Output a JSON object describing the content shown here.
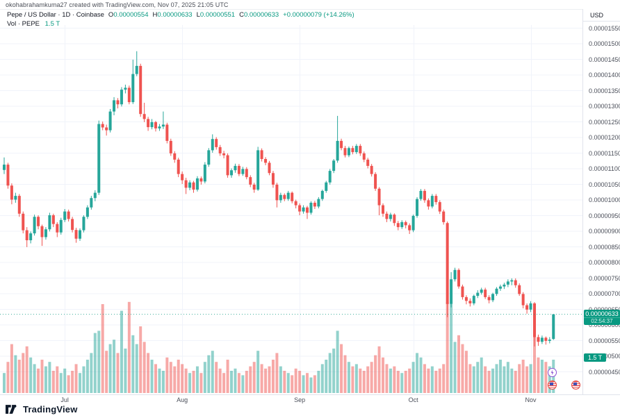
{
  "attribution": "okohabrahamkuma27 created with TradingView.com, Nov 07, 2025 21:05 UTC",
  "legend": {
    "title": "Pepe / US Dollar · 1D · Coinbase",
    "ohlc": [
      {
        "label": "O",
        "value": "0.00000554"
      },
      {
        "label": "H",
        "value": "0.00000633"
      },
      {
        "label": "L",
        "value": "0.00000551"
      },
      {
        "label": "C",
        "value": "0.00000633"
      }
    ],
    "change": "+0.00000079 (+14.26%)",
    "volume_label": "Vol · PEPE",
    "volume_value": "1.5 T"
  },
  "price_axis": {
    "currency": "USD",
    "current_price": "0.00000633",
    "countdown": "02:54:37",
    "volume_badge": "1.5 T"
  },
  "branding": {
    "logo_text": "TradingView"
  },
  "events": [
    {
      "icon": "lightning-event-icon",
      "type": "crypto-event"
    },
    {
      "icon": "us-flag-event-icon",
      "type": "economic-event"
    },
    {
      "icon": "us-flag-event-icon",
      "type": "economic-event"
    }
  ],
  "colors": {
    "up": "#26a69a",
    "down": "#ef5350",
    "up_volume": "rgba(38,166,154,0.5)",
    "down_volume": "rgba(239,83,80,0.5)",
    "accent": "#089981",
    "grid": "#f0f3fa",
    "axis_text": "#4a4e59"
  },
  "chart_data": {
    "type": "candlestick+volume",
    "title": "Pepe / US Dollar, 1D, Coinbase",
    "price_unit": "values are USD x 1e-8 (e.g. 633 = 0.00000633)",
    "volume_unit": "T (trillions of PEPE)",
    "ylim": [
      450,
      1550
    ],
    "y_tick_step": 50,
    "y_ticks": [
      450,
      500,
      550,
      600,
      650,
      700,
      750,
      800,
      850,
      900,
      950,
      1000,
      1050,
      1100,
      1150,
      1200,
      1250,
      1300,
      1350,
      1400,
      1450,
      1500,
      1550
    ],
    "x_ticks": [
      {
        "label": "Jul",
        "index": 16
      },
      {
        "label": "Aug",
        "index": 47
      },
      {
        "label": "Sep",
        "index": 78
      },
      {
        "label": "Oct",
        "index": 108
      },
      {
        "label": "Nov",
        "index": 139
      }
    ],
    "price_line_value": 633,
    "ohlc_last": {
      "open": 554,
      "high": 633,
      "low": 551,
      "close": 633
    },
    "candles_format": [
      "open",
      "high",
      "low",
      "close",
      "volume"
    ],
    "candles": [
      [
        1095,
        1135,
        1082,
        1112,
        0.9
      ],
      [
        1112,
        1118,
        1035,
        1045,
        1.4
      ],
      [
        1045,
        1052,
        985,
        1000,
        2.2
      ],
      [
        1000,
        1022,
        990,
        1012,
        1.7
      ],
      [
        1012,
        1018,
        945,
        955,
        1.5
      ],
      [
        955,
        962,
        892,
        902,
        1.8
      ],
      [
        902,
        912,
        848,
        870,
        2.1
      ],
      [
        870,
        898,
        860,
        892,
        1.6
      ],
      [
        892,
        952,
        885,
        945,
        1.3
      ],
      [
        945,
        950,
        905,
        915,
        1.1
      ],
      [
        915,
        920,
        852,
        880,
        1.5
      ],
      [
        880,
        912,
        872,
        905,
        1.2
      ],
      [
        905,
        958,
        898,
        950,
        1.4
      ],
      [
        950,
        955,
        912,
        922,
        1.0
      ],
      [
        922,
        928,
        880,
        895,
        1.2
      ],
      [
        895,
        942,
        888,
        935,
        0.9
      ],
      [
        935,
        970,
        928,
        962,
        1.1
      ],
      [
        962,
        968,
        930,
        938,
        0.8
      ],
      [
        938,
        945,
        895,
        903,
        1.0
      ],
      [
        903,
        910,
        862,
        875,
        1.3
      ],
      [
        875,
        908,
        868,
        902,
        0.9
      ],
      [
        902,
        950,
        895,
        945,
        1.2
      ],
      [
        945,
        982,
        938,
        975,
        1.5
      ],
      [
        975,
        1012,
        968,
        1005,
        1.8
      ],
      [
        1005,
        1030,
        995,
        1022,
        2.7
      ],
      [
        1022,
        1253,
        1015,
        1242,
        2.8
      ],
      [
        1242,
        1250,
        1222,
        1231,
        4.0
      ],
      [
        1231,
        1240,
        1205,
        1222,
        1.9
      ],
      [
        1222,
        1290,
        1215,
        1282,
        2.2
      ],
      [
        1282,
        1328,
        1270,
        1318,
        2.4
      ],
      [
        1318,
        1325,
        1292,
        1305,
        1.8
      ],
      [
        1305,
        1360,
        1298,
        1352,
        3.7
      ],
      [
        1352,
        1368,
        1340,
        1358,
        2.0
      ],
      [
        1358,
        1365,
        1305,
        1312,
        4.1
      ],
      [
        1312,
        1448,
        1306,
        1402,
        2.6
      ],
      [
        1402,
        1475,
        1395,
        1428,
        2.2
      ],
      [
        1428,
        1435,
        1265,
        1274,
        3.0
      ],
      [
        1274,
        1310,
        1248,
        1258,
        2.3
      ],
      [
        1258,
        1265,
        1220,
        1232,
        1.8
      ],
      [
        1232,
        1258,
        1225,
        1248,
        1.5
      ],
      [
        1248,
        1252,
        1218,
        1228,
        1.3
      ],
      [
        1228,
        1242,
        1220,
        1234,
        1.1
      ],
      [
        1234,
        1282,
        1226,
        1240,
        1.0
      ],
      [
        1240,
        1246,
        1180,
        1188,
        1.6
      ],
      [
        1188,
        1195,
        1140,
        1148,
        1.4
      ],
      [
        1148,
        1155,
        1118,
        1128,
        1.2
      ],
      [
        1128,
        1134,
        1072,
        1082,
        1.5
      ],
      [
        1082,
        1090,
        1050,
        1062,
        1.3
      ],
      [
        1062,
        1070,
        1018,
        1038,
        1.1
      ],
      [
        1038,
        1062,
        1030,
        1055,
        0.9
      ],
      [
        1055,
        1060,
        1022,
        1032,
        1.0
      ],
      [
        1032,
        1075,
        1026,
        1068,
        1.2
      ],
      [
        1068,
        1074,
        1048,
        1058,
        0.9
      ],
      [
        1058,
        1120,
        1052,
        1112,
        1.4
      ],
      [
        1112,
        1165,
        1105,
        1158,
        1.7
      ],
      [
        1158,
        1209,
        1150,
        1194,
        1.9
      ],
      [
        1194,
        1200,
        1160,
        1168,
        1.4
      ],
      [
        1168,
        1175,
        1140,
        1148,
        1.1
      ],
      [
        1148,
        1156,
        1132,
        1142,
        0.9
      ],
      [
        1142,
        1148,
        1070,
        1078,
        1.5
      ],
      [
        1078,
        1100,
        1070,
        1094,
        1.0
      ],
      [
        1094,
        1115,
        1086,
        1108,
        1.1
      ],
      [
        1108,
        1114,
        1075,
        1082,
        0.9
      ],
      [
        1082,
        1105,
        1076,
        1098,
        0.8
      ],
      [
        1098,
        1104,
        1065,
        1072,
        1.0
      ],
      [
        1072,
        1078,
        1040,
        1048,
        1.2
      ],
      [
        1048,
        1054,
        1022,
        1032,
        1.4
      ],
      [
        1032,
        1169,
        1028,
        1158,
        1.9
      ],
      [
        1158,
        1164,
        1122,
        1130,
        1.3
      ],
      [
        1130,
        1136,
        1110,
        1118,
        1.1
      ],
      [
        1118,
        1124,
        1078,
        1085,
        1.2
      ],
      [
        1085,
        1092,
        1038,
        1048,
        1.5
      ],
      [
        1048,
        1054,
        975,
        998,
        1.8
      ],
      [
        998,
        1022,
        990,
        1015,
        1.2
      ],
      [
        1015,
        1020,
        995,
        1002,
        1.0
      ],
      [
        1002,
        1028,
        996,
        1022,
        0.9
      ],
      [
        1022,
        1026,
        988,
        995,
        0.8
      ],
      [
        995,
        1000,
        972,
        982,
        1.1
      ],
      [
        982,
        988,
        950,
        962,
        1.0
      ],
      [
        962,
        982,
        955,
        975,
        0.8
      ],
      [
        975,
        980,
        938,
        958,
        0.9
      ],
      [
        958,
        995,
        952,
        990,
        0.7
      ],
      [
        990,
        996,
        970,
        978,
        0.8
      ],
      [
        978,
        1008,
        972,
        1002,
        1.0
      ],
      [
        1002,
        1032,
        996,
        1028,
        1.3
      ],
      [
        1028,
        1060,
        1022,
        1055,
        1.5
      ],
      [
        1055,
        1098,
        1048,
        1092,
        1.8
      ],
      [
        1092,
        1130,
        1085,
        1125,
        2.0
      ],
      [
        1125,
        1268,
        1118,
        1188,
        2.8
      ],
      [
        1188,
        1195,
        1158,
        1165,
        2.2
      ],
      [
        1165,
        1172,
        1135,
        1142,
        1.7
      ],
      [
        1142,
        1170,
        1136,
        1165,
        1.4
      ],
      [
        1165,
        1172,
        1145,
        1152,
        1.2
      ],
      [
        1152,
        1178,
        1146,
        1172,
        1.3
      ],
      [
        1172,
        1178,
        1140,
        1148,
        1.1
      ],
      [
        1148,
        1154,
        1120,
        1128,
        1.0
      ],
      [
        1128,
        1134,
        1100,
        1108,
        1.2
      ],
      [
        1108,
        1114,
        1074,
        1082,
        1.4
      ],
      [
        1082,
        1088,
        1028,
        1035,
        1.7
      ],
      [
        1035,
        1040,
        950,
        982,
        2.1
      ],
      [
        982,
        988,
        945,
        955,
        1.6
      ],
      [
        955,
        962,
        928,
        938,
        1.3
      ],
      [
        938,
        958,
        930,
        952,
        1.1
      ],
      [
        952,
        956,
        916,
        925,
        1.2
      ],
      [
        925,
        932,
        902,
        912,
        1.0
      ],
      [
        912,
        934,
        906,
        928,
        0.9
      ],
      [
        928,
        933,
        908,
        918,
        1.0
      ],
      [
        918,
        924,
        890,
        902,
        1.1
      ],
      [
        902,
        952,
        896,
        948,
        1.4
      ],
      [
        948,
        1008,
        942,
        1002,
        1.8
      ],
      [
        1002,
        1034,
        996,
        1028,
        1.6
      ],
      [
        1028,
        1034,
        990,
        998,
        1.3
      ],
      [
        998,
        1004,
        968,
        978,
        1.1
      ],
      [
        978,
        1018,
        972,
        1012,
        1.2
      ],
      [
        1012,
        1018,
        984,
        992,
        1.0
      ],
      [
        992,
        998,
        954,
        962,
        1.1
      ],
      [
        962,
        968,
        920,
        928,
        1.3
      ],
      [
        925,
        930,
        624,
        666,
        4.1
      ],
      [
        666,
        768,
        655,
        745,
        4.0
      ],
      [
        745,
        782,
        738,
        775,
        2.3
      ],
      [
        775,
        780,
        715,
        722,
        2.6
      ],
      [
        722,
        728,
        680,
        688,
        2.2
      ],
      [
        688,
        694,
        665,
        676,
        1.9
      ],
      [
        676,
        684,
        658,
        668,
        1.3
      ],
      [
        668,
        696,
        662,
        692,
        1.2
      ],
      [
        692,
        710,
        685,
        702,
        1.4
      ],
      [
        702,
        718,
        696,
        712,
        1.6
      ],
      [
        712,
        718,
        682,
        688,
        1.2
      ],
      [
        688,
        694,
        668,
        678,
        1.0
      ],
      [
        678,
        702,
        672,
        698,
        1.1
      ],
      [
        698,
        720,
        692,
        715,
        1.3
      ],
      [
        715,
        728,
        708,
        722,
        1.5
      ],
      [
        722,
        734,
        714,
        728,
        1.2
      ],
      [
        728,
        745,
        720,
        738,
        1.4
      ],
      [
        738,
        748,
        726,
        742,
        1.1
      ],
      [
        742,
        748,
        718,
        726,
        1.0
      ],
      [
        726,
        732,
        692,
        698,
        1.3
      ],
      [
        698,
        704,
        652,
        662,
        1.5
      ],
      [
        662,
        668,
        635,
        648,
        1.2
      ],
      [
        648,
        675,
        640,
        668,
        1.3
      ],
      [
        668,
        672,
        530,
        560,
        3.3
      ],
      [
        560,
        568,
        532,
        545,
        1.6
      ],
      [
        545,
        565,
        538,
        558,
        1.5
      ],
      [
        558,
        562,
        536,
        548,
        1.4
      ],
      [
        548,
        560,
        540,
        552,
        1.2
      ],
      [
        554,
        633,
        551,
        633,
        1.5
      ]
    ]
  }
}
